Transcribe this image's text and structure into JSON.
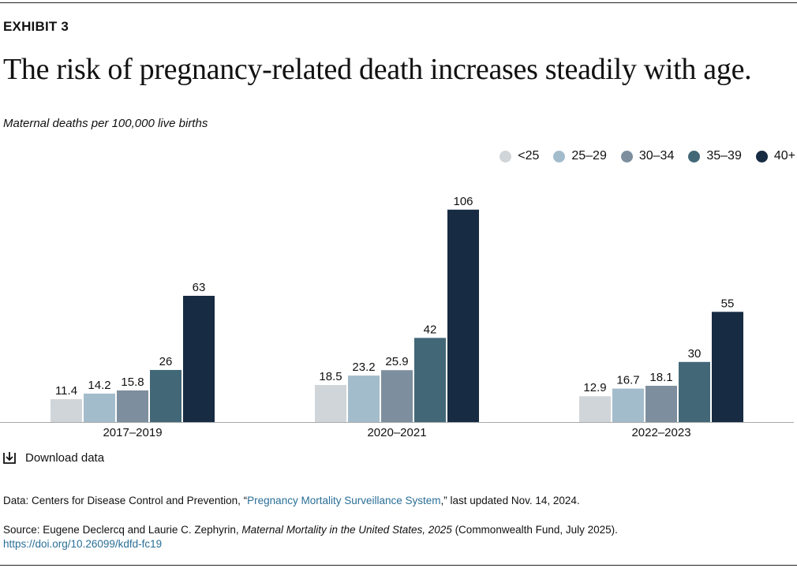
{
  "exhibit": "EXHIBIT 3",
  "chart_data": {
    "type": "bar",
    "title": "The risk of pregnancy-related death increases steadily with age.",
    "y_label": "Maternal deaths per 100,000 live births",
    "categories": [
      "2017–2019",
      "2020–2021",
      "2022–2023"
    ],
    "series": [
      {
        "name": "<25",
        "color": "#d0d5d9",
        "values": [
          11.4,
          18.5,
          12.9
        ]
      },
      {
        "name": "25–29",
        "color": "#a3bccb",
        "values": [
          14.2,
          23.2,
          16.7
        ]
      },
      {
        "name": "30–34",
        "color": "#7d8f9e",
        "values": [
          15.8,
          25.9,
          18.1
        ]
      },
      {
        "name": "35–39",
        "color": "#426878",
        "values": [
          26,
          42,
          30
        ]
      },
      {
        "name": "40+",
        "color": "#172b42",
        "values": [
          63,
          106,
          55
        ]
      }
    ],
    "legend": "top-right"
  },
  "download": "Download data",
  "data_note": {
    "prefix": "Data: Centers for Disease Control and Prevention, “",
    "link": "Pregnancy Mortality Surveillance System",
    "suffix": ",” last updated Nov. 14, 2024."
  },
  "source_note": {
    "prefix": "Source: Eugene Declercq and Laurie C. Zephyrin, ",
    "italic": "Maternal Mortality in the United States, 2025",
    "suffix": " (Commonwealth Fund, July 2025).",
    "link": "https://doi.org/10.26099/kdfd-fc19"
  }
}
